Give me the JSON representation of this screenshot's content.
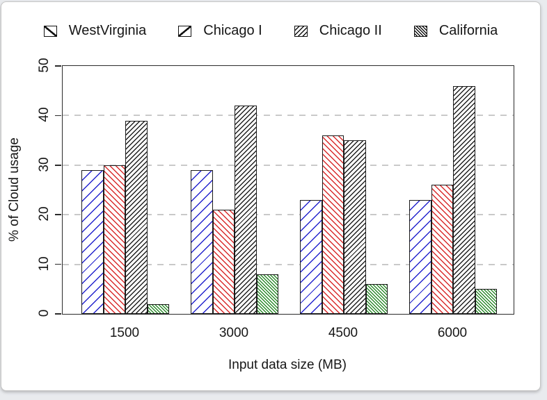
{
  "window": {
    "background": "#e9ebee",
    "card_background": "#ffffff",
    "card_border": "#c6c6c6"
  },
  "chart_data": {
    "type": "bar",
    "title": "",
    "xlabel": "Input data size (MB)",
    "ylabel": "% of Cloud usage",
    "categories": [
      "1500",
      "3000",
      "4500",
      "6000"
    ],
    "series": [
      {
        "name": "WestVirginia",
        "color": "#2323cd",
        "hatch": "/",
        "hatch_density": "sparse",
        "legend_swatch": "single",
        "values": [
          29,
          29,
          23,
          23
        ]
      },
      {
        "name": "Chicago I",
        "color": "#d92b2b",
        "hatch": "\\",
        "hatch_density": "medium",
        "legend_swatch": "single",
        "values": [
          30,
          21,
          36,
          26
        ]
      },
      {
        "name": "Chicago II",
        "color": "#1f1f1f",
        "hatch": "/",
        "hatch_density": "dense",
        "legend_swatch": "multi",
        "values": [
          39,
          42,
          35,
          46
        ]
      },
      {
        "name": "California",
        "color": "#2e8b2e",
        "hatch": "\\",
        "hatch_density": "very-dense",
        "legend_swatch": "multi-dense",
        "values": [
          2,
          8,
          6,
          5
        ]
      }
    ],
    "ylim": [
      0,
      50
    ],
    "yticks": [
      0,
      10,
      20,
      30,
      40,
      50
    ],
    "grid": {
      "style": "dashed",
      "color": "#c9c9c9",
      "at": [
        10,
        20,
        30,
        40
      ]
    },
    "legend_position": "top",
    "bar_outline": "#1a1a1a"
  }
}
